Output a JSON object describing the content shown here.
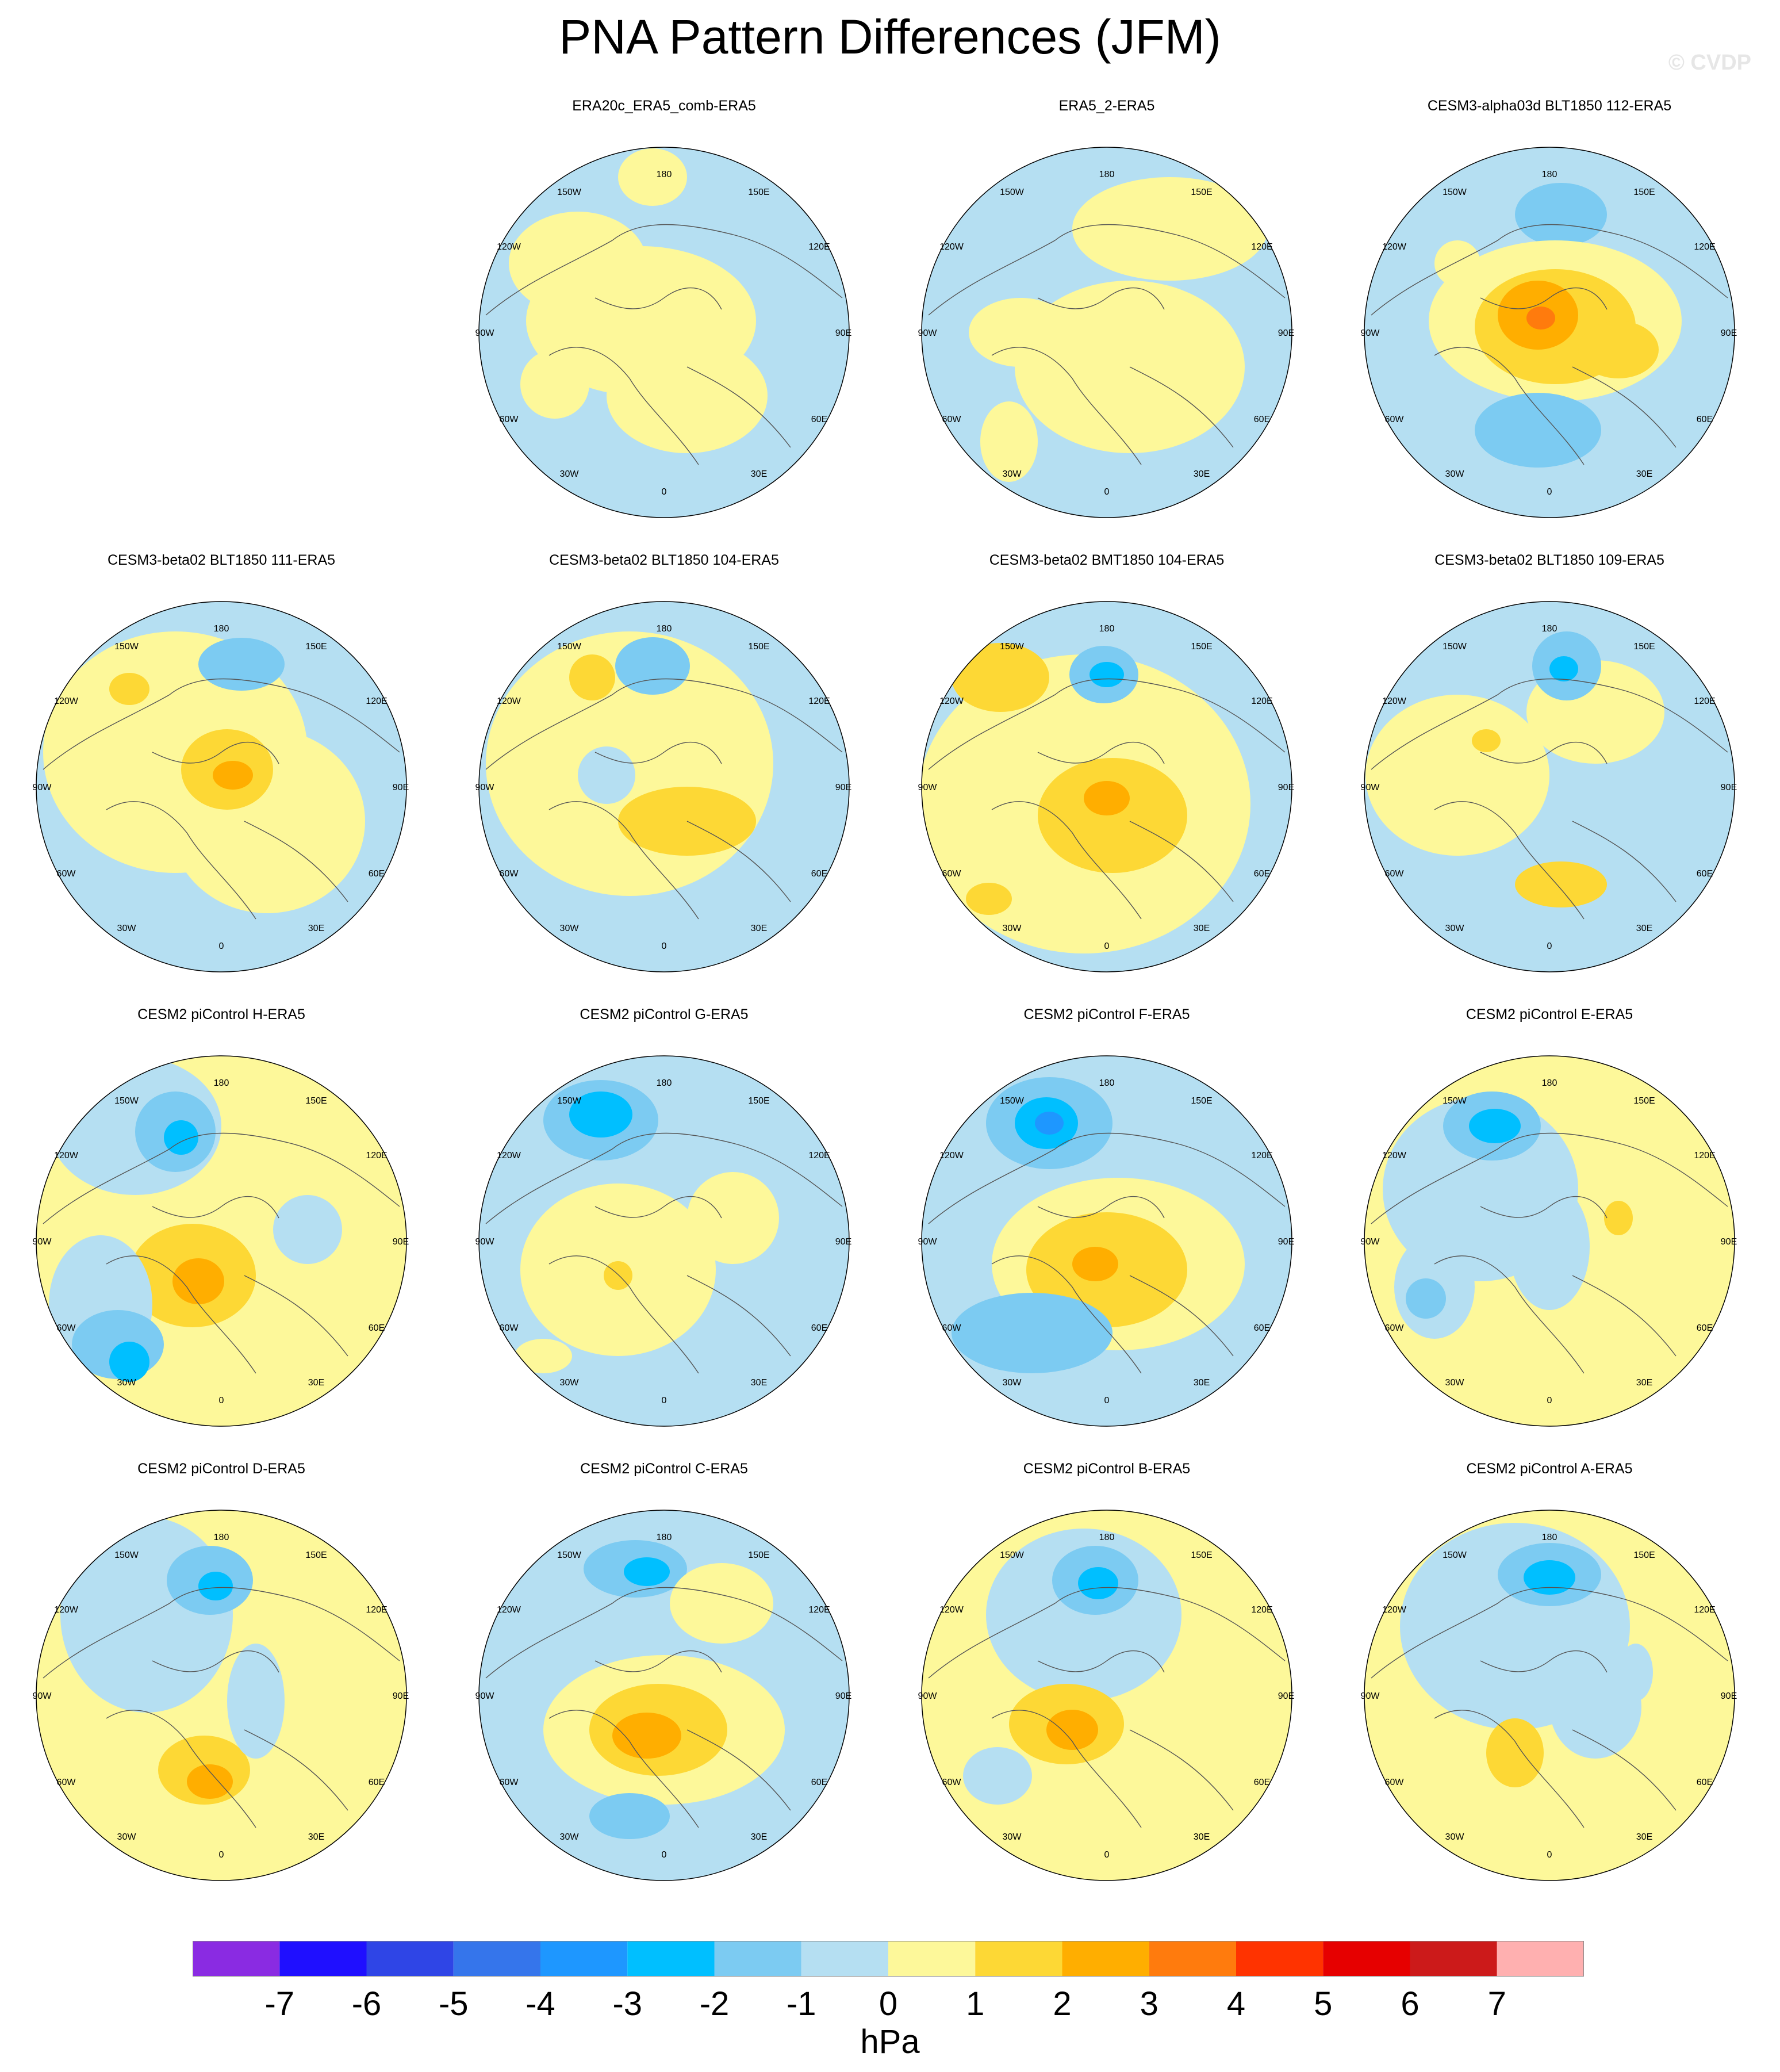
{
  "title": "PNA Pattern Differences (JFM)",
  "credit": "© CVDP",
  "units": "hPa",
  "longitude_labels": [
    "180",
    "150E",
    "120E",
    "90E",
    "60E",
    "30E",
    "0",
    "30W",
    "60W",
    "90W",
    "120W",
    "150W"
  ],
  "colorbar": {
    "tick_labels": [
      "-7",
      "-6",
      "-5",
      "-4",
      "-3",
      "-2",
      "-1",
      "0",
      "1",
      "2",
      "3",
      "4",
      "5",
      "6",
      "7"
    ],
    "colors": [
      "#8a2be2",
      "#1f0fff",
      "#2f45e6",
      "#3575eb",
      "#1e97ff",
      "#00bfff",
      "#7ccbf2",
      "#b5dff2",
      "#fdf89a",
      "#fdd835",
      "#ffae00",
      "#ff7b0d",
      "#ff3300",
      "#e60000",
      "#cc1a1a",
      "#ffb0b0"
    ]
  },
  "panels": [
    {
      "title": "ERA20c_ERA5_comb-ERA5"
    },
    {
      "title": "ERA5_2-ERA5"
    },
    {
      "title": "CESM3-alpha03d BLT1850 112-ERA5"
    },
    {
      "title": "CESM3-beta02 BLT1850 111-ERA5"
    },
    {
      "title": "CESM3-beta02 BLT1850 104-ERA5"
    },
    {
      "title": "CESM3-beta02 BMT1850 104-ERA5"
    },
    {
      "title": "CESM3-beta02 BLT1850 109-ERA5"
    },
    {
      "title": "CESM2 piControl H-ERA5"
    },
    {
      "title": "CESM2 piControl G-ERA5"
    },
    {
      "title": "CESM2 piControl F-ERA5"
    },
    {
      "title": "CESM2 piControl E-ERA5"
    },
    {
      "title": "CESM2 piControl D-ERA5"
    },
    {
      "title": "CESM2 piControl C-ERA5"
    },
    {
      "title": "CESM2 piControl B-ERA5"
    },
    {
      "title": "CESM2 piControl A-ERA5"
    }
  ]
}
